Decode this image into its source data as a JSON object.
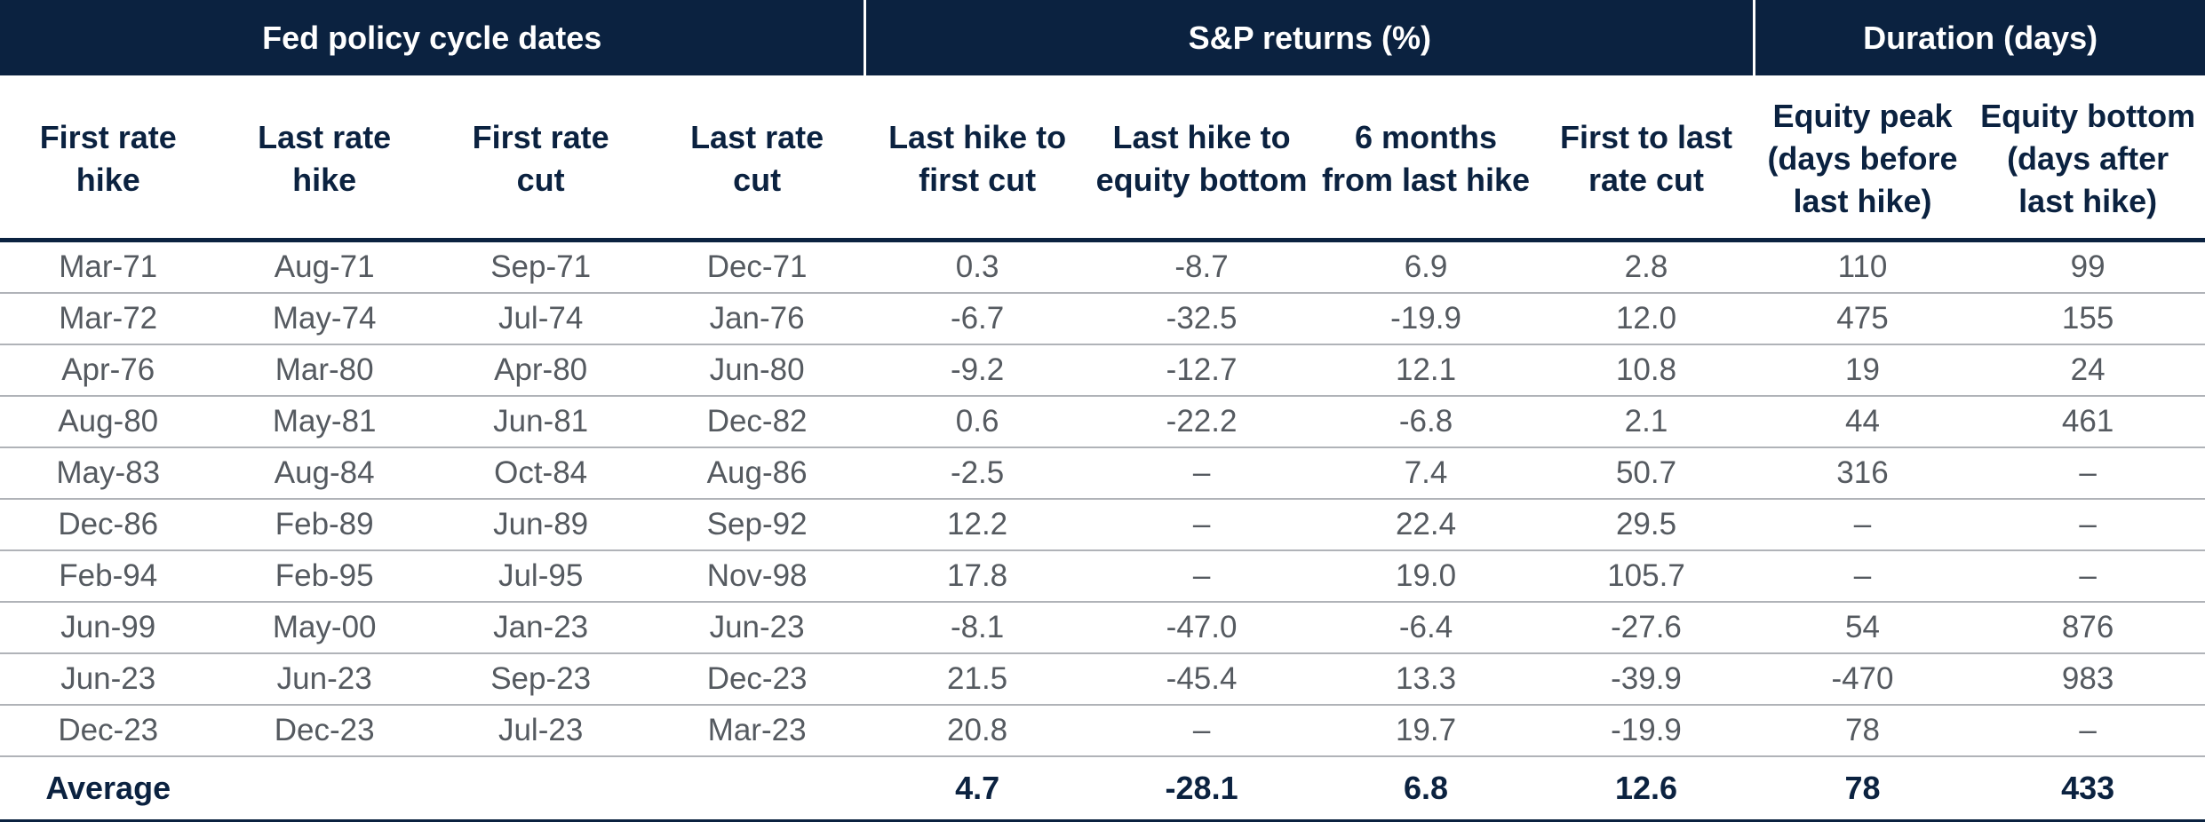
{
  "table": {
    "group_headers": [
      "Fed policy cycle dates",
      "S&P returns (%)",
      "Duration (days)"
    ],
    "column_headers": [
      "First rate\nhike",
      "Last rate\nhike",
      "First rate\ncut",
      "Last rate\ncut",
      "Last hike to\nfirst cut",
      "Last hike to\nequity bottom",
      "6 months\nfrom last hike",
      "First to last\nrate cut",
      "Equity peak\n(days before\nlast hike)",
      "Equity bottom\n(days after\nlast hike)"
    ],
    "rows": [
      [
        "Mar-71",
        "Aug-71",
        "Sep-71",
        "Dec-71",
        "0.3",
        "-8.7",
        "6.9",
        "2.8",
        "110",
        "99"
      ],
      [
        "Mar-72",
        "May-74",
        "Jul-74",
        "Jan-76",
        "-6.7",
        "-32.5",
        "-19.9",
        "12.0",
        "475",
        "155"
      ],
      [
        "Apr-76",
        "Mar-80",
        "Apr-80",
        "Jun-80",
        "-9.2",
        "-12.7",
        "12.1",
        "10.8",
        "19",
        "24"
      ],
      [
        "Aug-80",
        "May-81",
        "Jun-81",
        "Dec-82",
        "0.6",
        "-22.2",
        "-6.8",
        "2.1",
        "44",
        "461"
      ],
      [
        "May-83",
        "Aug-84",
        "Oct-84",
        "Aug-86",
        "-2.5",
        "–",
        "7.4",
        "50.7",
        "316",
        "–"
      ],
      [
        "Dec-86",
        "Feb-89",
        "Jun-89",
        "Sep-92",
        "12.2",
        "–",
        "22.4",
        "29.5",
        "–",
        "–"
      ],
      [
        "Feb-94",
        "Feb-95",
        "Jul-95",
        "Nov-98",
        "17.8",
        "–",
        "19.0",
        "105.7",
        "–",
        "–"
      ],
      [
        "Jun-99",
        "May-00",
        "Jan-23",
        "Jun-23",
        "-8.1",
        "-47.0",
        "-6.4",
        "-27.6",
        "54",
        "876"
      ],
      [
        "Jun-23",
        "Jun-23",
        "Sep-23",
        "Dec-23",
        "21.5",
        "-45.4",
        "13.3",
        "-39.9",
        "-470",
        "983"
      ],
      [
        "Dec-23",
        "Dec-23",
        "Jul-23",
        "Mar-23",
        "20.8",
        "–",
        "19.7",
        "-19.9",
        "78",
        "–"
      ]
    ],
    "average": {
      "label": "Average",
      "values": [
        "",
        "",
        "",
        "4.7",
        "-28.1",
        "6.8",
        "12.6",
        "78",
        "433"
      ]
    }
  }
}
